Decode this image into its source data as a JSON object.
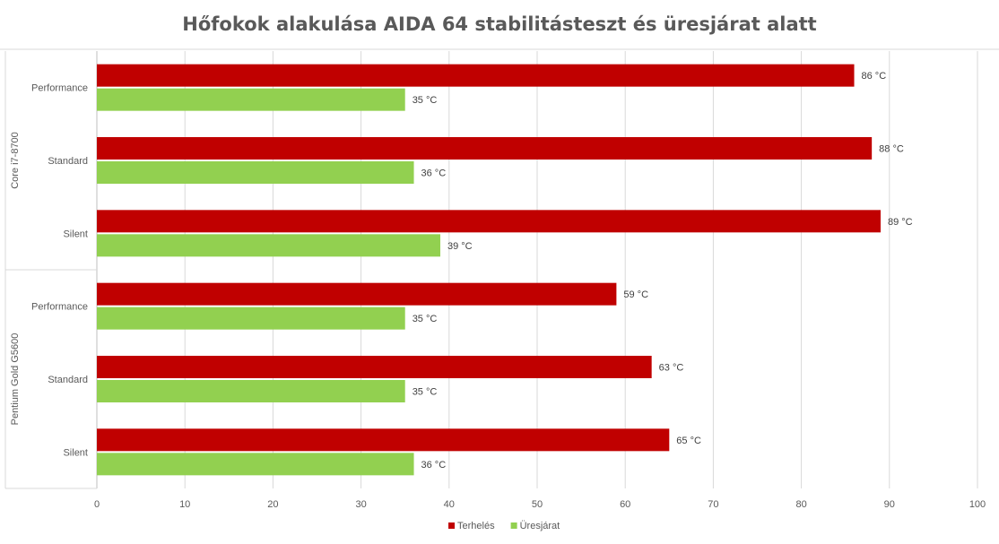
{
  "chart_data": {
    "type": "bar",
    "orientation": "horizontal",
    "title": "Hőfokok alakulása AIDA 64 stabilitásteszt és üresjárat alatt",
    "xlabel": "",
    "ylabel": "",
    "xlim": [
      0,
      100
    ],
    "x_ticks": [
      "0",
      "10",
      "20",
      "30",
      "40",
      "50",
      "60",
      "70",
      "80",
      "90",
      "100"
    ],
    "grid": true,
    "legend_position": "bottom",
    "unit_suffix": " °C",
    "groups": [
      {
        "label": "Core i7-8700",
        "categories": [
          "Performance",
          "Standard",
          "Silent"
        ]
      },
      {
        "label": "Pentium Gold G5600",
        "categories": [
          "Performance",
          "Standard",
          "Silent"
        ]
      }
    ],
    "series": [
      {
        "name": "Terhelés",
        "color": "#c00000",
        "values": [
          86,
          88,
          89,
          59,
          63,
          65
        ]
      },
      {
        "name": "Üresjárat",
        "color": "#92d050",
        "values": [
          35,
          36,
          39,
          35,
          35,
          36
        ]
      }
    ]
  }
}
